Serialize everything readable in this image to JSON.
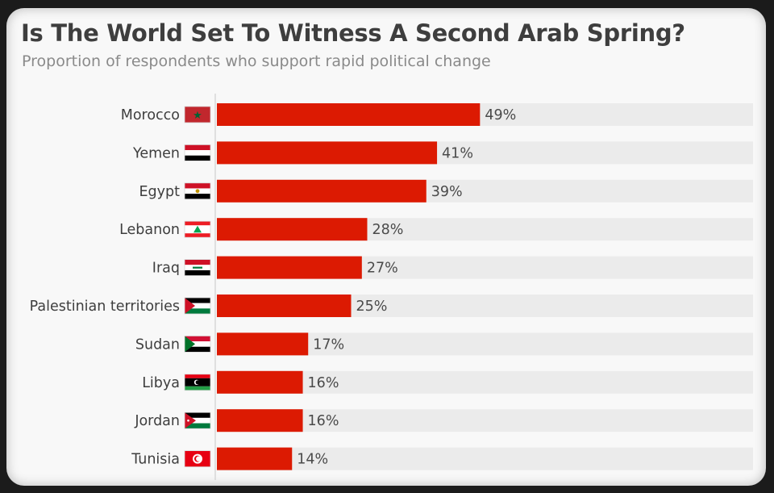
{
  "title": "Is The World Set To Witness A Second Arab Spring?",
  "subtitle": "Proportion of respondents who support rapid political change",
  "colors": {
    "bar": "#dc1a02",
    "track": "#ebebeb",
    "axis": "#cfcfcf"
  },
  "chart_data": {
    "type": "bar",
    "orientation": "horizontal",
    "categories": [
      "Morocco",
      "Yemen",
      "Egypt",
      "Lebanon",
      "Iraq",
      "Palestinian territories",
      "Sudan",
      "Libya",
      "Jordan",
      "Tunisia"
    ],
    "values": [
      49,
      41,
      39,
      28,
      27,
      25,
      17,
      16,
      16,
      14
    ],
    "value_labels": [
      "49%",
      "41%",
      "39%",
      "28%",
      "27%",
      "25%",
      "17%",
      "16%",
      "16%",
      "14%"
    ],
    "flag_icons": [
      "morocco-flag-icon",
      "yemen-flag-icon",
      "egypt-flag-icon",
      "lebanon-flag-icon",
      "iraq-flag-icon",
      "palestine-flag-icon",
      "sudan-flag-icon",
      "libya-flag-icon",
      "jordan-flag-icon",
      "tunisia-flag-icon"
    ],
    "title": "Is The World Set To Witness A Second Arab Spring?",
    "subtitle": "Proportion of respondents who support rapid political change",
    "xlim": [
      0,
      100
    ],
    "grid": false,
    "legend": "none"
  }
}
